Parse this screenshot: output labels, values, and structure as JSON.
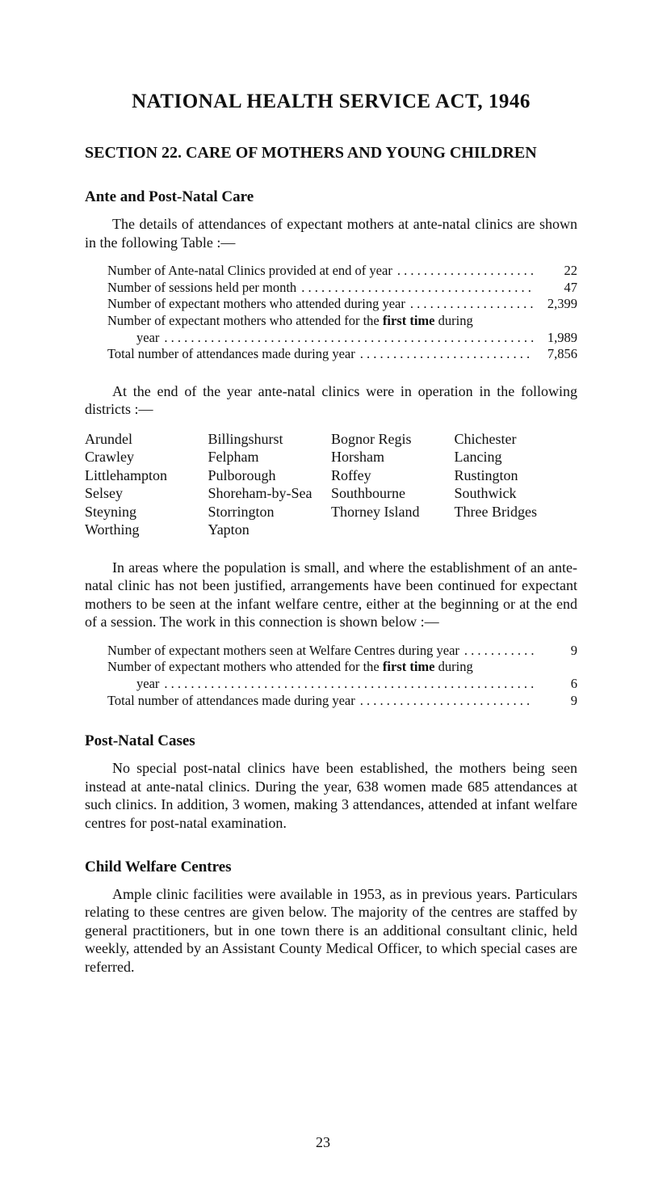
{
  "title": "NATIONAL HEALTH SERVICE ACT, 1946",
  "section_title": "SECTION 22.  CARE OF MOTHERS AND YOUNG CHILDREN",
  "ante": {
    "heading": "Ante and Post-Natal Care",
    "para1": "The details of attendances of expectant mothers at ante-natal clinics are shown in the following Table :—",
    "stats": [
      {
        "label": "Number of Ante-natal Clinics provided at end of year",
        "value": "22"
      },
      {
        "label": "Number of sessions held per month",
        "value": "47"
      },
      {
        "label": "Number of expectant mothers who attended during year",
        "value": "2,399"
      },
      {
        "label": "Number of expectant mothers who attended for the ",
        "bold_tail": "first time",
        "post": " during",
        "value": ""
      },
      {
        "label": "year",
        "value": "1,989",
        "year_indent": true
      },
      {
        "label": "Total number of attendances made during year",
        "value": "7,856"
      }
    ],
    "para2": "At the end of the year ante-natal clinics were in operation in the following districts :—",
    "districts": [
      [
        "Arundel",
        "Billingshurst",
        "Bognor Regis",
        "Chichester"
      ],
      [
        "Crawley",
        "Felpham",
        "Horsham",
        "Lancing"
      ],
      [
        "Littlehampton",
        "Pulborough",
        "Roffey",
        "Rustington"
      ],
      [
        "Selsey",
        "Shoreham-by-Sea",
        "Southbourne",
        "Southwick"
      ],
      [
        "Steyning",
        "Storrington",
        "Thorney Island",
        "Three Bridges"
      ],
      [
        "Worthing",
        "Yapton",
        "",
        ""
      ]
    ],
    "para3": "In areas where the population is small, and where the establishment of an ante-natal clinic has not been justified, arrangements have been continued for expectant mothers to be seen at the infant welfare centre, either at the beginning or at the end of a session. The work in this connection is shown below :—",
    "stats2": [
      {
        "label": "Number of expectant mothers seen at Welfare Centres during year",
        "value": "9"
      },
      {
        "label": "Number of expectant mothers who attended for the ",
        "bold_tail": "first time",
        "post": " during",
        "value": ""
      },
      {
        "label": "year",
        "value": "6",
        "year_indent": true
      },
      {
        "label": "Total number of attendances made during year",
        "value": "9"
      }
    ]
  },
  "post": {
    "heading": "Post-Natal Cases",
    "para": "No special post-natal clinics have been established, the mothers being seen instead at ante-natal clinics. During the year, 638 women made 685 attendances at such clinics. In addition, 3 women, making 3 attendances, attended at infant welfare centres for post-natal examin­ation."
  },
  "child": {
    "heading": "Child Welfare Centres",
    "para": "Ample clinic facilities were available in 1953, as in previous years. Particulars relating to these centres are given below. The majority of the centres are staffed by general practitioners, but in one town there is an additional consultant clinic, held weekly, attended by an Assistant County Medical Officer, to which special cases are referred."
  },
  "page_number": "23"
}
